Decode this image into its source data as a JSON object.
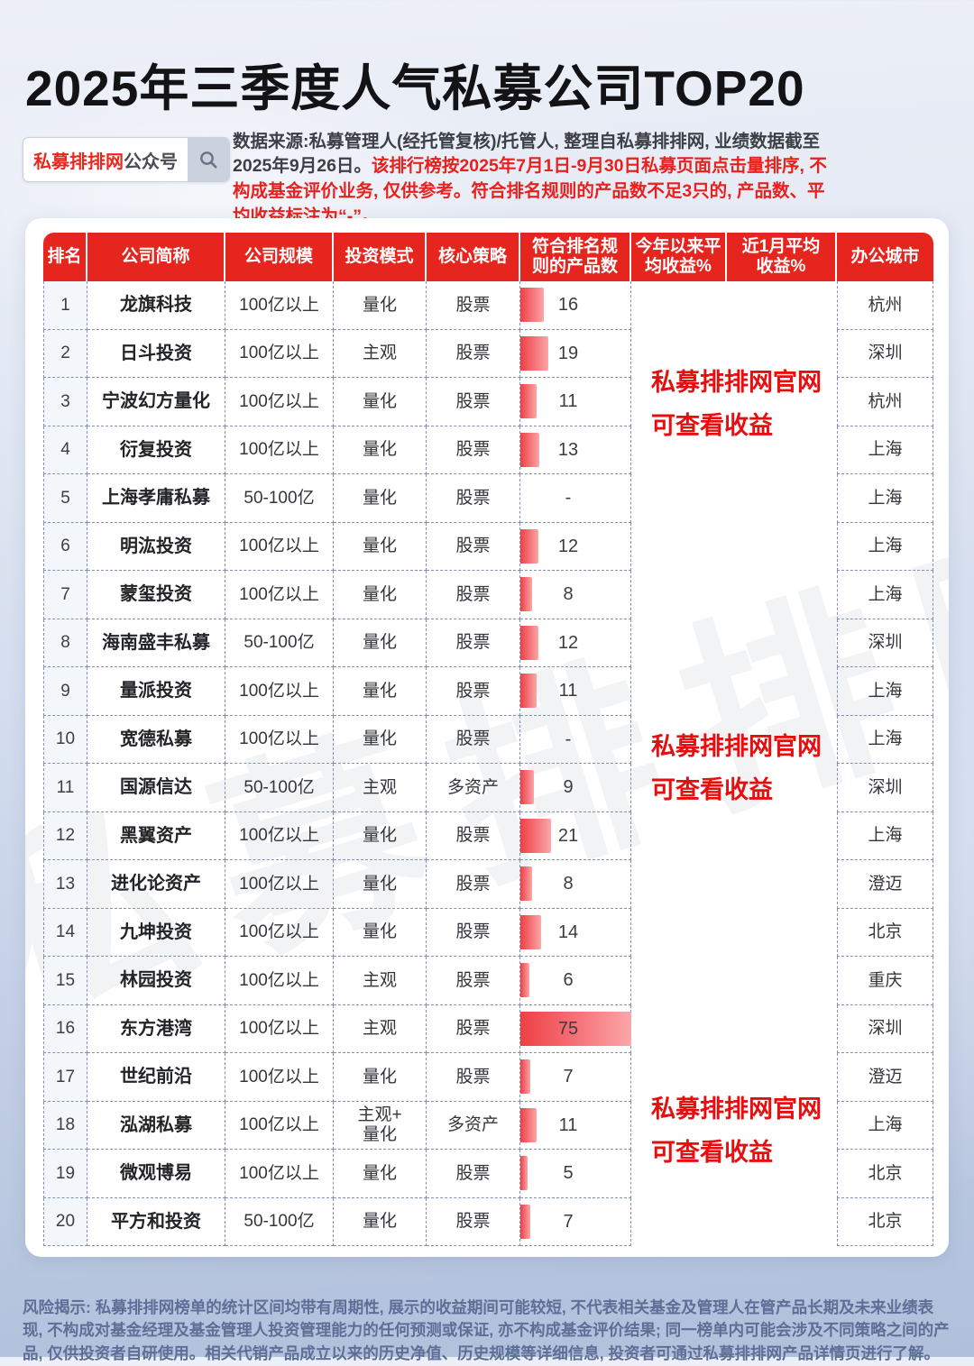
{
  "page": {
    "title": "2025年三季度人气私募公司TOP20",
    "search": {
      "brand": "私募排排网",
      "suffix": "公众号",
      "icon": "search-magnifier"
    },
    "source_note_plain": "数据来源:私募管理人(经托管复核)/托管人, 整理自私募排排网, 业绩数据截至2025年9月26日。",
    "source_note_red": "该排行榜按2025年7月1日-9月30日私募页面点击量排序, 不构成基金评价业务, 仅供参考。符合排名规则的产品数不足3只的, 产品数、平均收益标注为“-”。",
    "watermark": "私募排排网",
    "overlay": {
      "line1": "私募排排网官网",
      "line2": "可查看收益"
    },
    "colors": {
      "header_red": "#e6251f",
      "accent_red": "#e8201e",
      "bar_red": "#ef3f44",
      "dash_border": "#8591b0"
    }
  },
  "table": {
    "headers": [
      "排名",
      "公司简称",
      "公司规模",
      "投资模式",
      "核心策略",
      "符合排名规\n则的产品数",
      "今年以来平\n均收益%",
      "近1月平均\n收益%",
      "办公城市"
    ],
    "max_products": 75,
    "rows": [
      {
        "rank": "1",
        "name": "龙旗科技",
        "scale": "100亿以上",
        "mode": "量化",
        "strategy": "股票",
        "products": "16",
        "city": "杭州"
      },
      {
        "rank": "2",
        "name": "日斗投资",
        "scale": "100亿以上",
        "mode": "主观",
        "strategy": "股票",
        "products": "19",
        "city": "深圳"
      },
      {
        "rank": "3",
        "name": "宁波幻方量化",
        "scale": "100亿以上",
        "mode": "量化",
        "strategy": "股票",
        "products": "11",
        "city": "杭州"
      },
      {
        "rank": "4",
        "name": "衍复投资",
        "scale": "100亿以上",
        "mode": "量化",
        "strategy": "股票",
        "products": "13",
        "city": "上海"
      },
      {
        "rank": "5",
        "name": "上海孝庸私募",
        "scale": "50-100亿",
        "mode": "量化",
        "strategy": "股票",
        "products": "-",
        "city": "上海"
      },
      {
        "rank": "6",
        "name": "明汯投资",
        "scale": "100亿以上",
        "mode": "量化",
        "strategy": "股票",
        "products": "12",
        "city": "上海"
      },
      {
        "rank": "7",
        "name": "蒙玺投资",
        "scale": "100亿以上",
        "mode": "量化",
        "strategy": "股票",
        "products": "8",
        "city": "上海"
      },
      {
        "rank": "8",
        "name": "海南盛丰私募",
        "scale": "50-100亿",
        "mode": "量化",
        "strategy": "股票",
        "products": "12",
        "city": "深圳"
      },
      {
        "rank": "9",
        "name": "量派投资",
        "scale": "100亿以上",
        "mode": "量化",
        "strategy": "股票",
        "products": "11",
        "city": "上海"
      },
      {
        "rank": "10",
        "name": "宽德私募",
        "scale": "100亿以上",
        "mode": "量化",
        "strategy": "股票",
        "products": "-",
        "city": "上海"
      },
      {
        "rank": "11",
        "name": "国源信达",
        "scale": "50-100亿",
        "mode": "主观",
        "strategy": "多资产",
        "products": "9",
        "city": "深圳"
      },
      {
        "rank": "12",
        "name": "黑翼资产",
        "scale": "100亿以上",
        "mode": "量化",
        "strategy": "股票",
        "products": "21",
        "city": "上海"
      },
      {
        "rank": "13",
        "name": "进化论资产",
        "scale": "100亿以上",
        "mode": "量化",
        "strategy": "股票",
        "products": "8",
        "city": "澄迈"
      },
      {
        "rank": "14",
        "name": "九坤投资",
        "scale": "100亿以上",
        "mode": "量化",
        "strategy": "股票",
        "products": "14",
        "city": "北京"
      },
      {
        "rank": "15",
        "name": "林园投资",
        "scale": "100亿以上",
        "mode": "主观",
        "strategy": "股票",
        "products": "6",
        "city": "重庆"
      },
      {
        "rank": "16",
        "name": "东方港湾",
        "scale": "100亿以上",
        "mode": "主观",
        "strategy": "股票",
        "products": "75",
        "city": "深圳"
      },
      {
        "rank": "17",
        "name": "世纪前沿",
        "scale": "100亿以上",
        "mode": "量化",
        "strategy": "股票",
        "products": "7",
        "city": "澄迈"
      },
      {
        "rank": "18",
        "name": "泓湖私募",
        "scale": "100亿以上",
        "mode": "主观+\n量化",
        "strategy": "多资产",
        "products": "11",
        "city": "上海"
      },
      {
        "rank": "19",
        "name": "微观博易",
        "scale": "100亿以上",
        "mode": "量化",
        "strategy": "股票",
        "products": "5",
        "city": "北京"
      },
      {
        "rank": "20",
        "name": "平方和投资",
        "scale": "50-100亿",
        "mode": "量化",
        "strategy": "股票",
        "products": "7",
        "city": "北京"
      }
    ]
  },
  "disclaimer": "风险揭示: 私募排排网榜单的统计区间均带有周期性, 展示的收益期间可能较短, 不代表相关基金及管理人在管产品长期及未来业绩表现, 不构成对基金经理及基金管理人投资管理能力的任何预测或保证, 亦不构成基金评价结果; 同一榜单内可能会涉及不同策略之间的产品, 仅供投资者自研使用。相关代销产品成立以来的历史净值、历史规模等详细信息, 投资者可通过私募排排网产品详情页进行了解。"
}
